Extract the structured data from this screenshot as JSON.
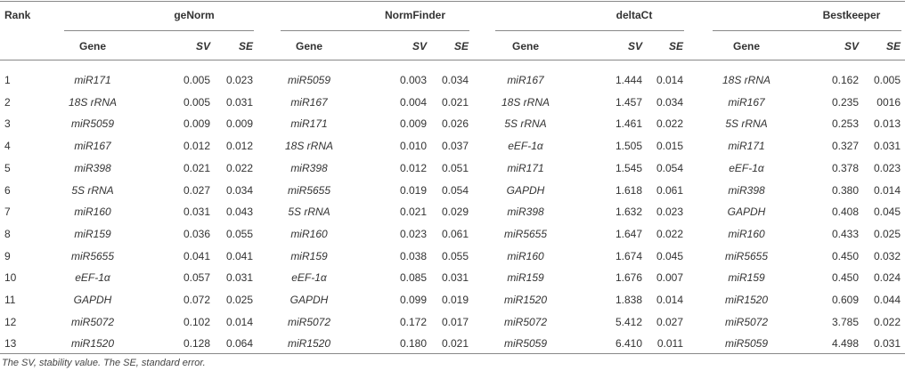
{
  "table": {
    "rank_header": "Rank",
    "groups": [
      {
        "title": "geNorm",
        "columns": [
          "Gene",
          "SV",
          "SE"
        ]
      },
      {
        "title": "NormFinder",
        "columns": [
          "Gene",
          "SV",
          "SE"
        ]
      },
      {
        "title": "deltaCt",
        "columns": [
          "Gene",
          "SV",
          "SE"
        ]
      },
      {
        "title": "Bestkeeper",
        "columns": [
          "Gene",
          "SV",
          "SE"
        ]
      }
    ],
    "rows": [
      [
        "1",
        "miR171",
        "0.005",
        "0.023",
        "miR5059",
        "0.003",
        "0.034",
        "miR167",
        "1.444",
        "0.014",
        "18S rRNA",
        "0.162",
        "0.005"
      ],
      [
        "2",
        "18S rRNA",
        "0.005",
        "0.031",
        "miR167",
        "0.004",
        "0.021",
        "18S rRNA",
        "1.457",
        "0.034",
        "miR167",
        "0.235",
        "0016"
      ],
      [
        "3",
        "miR5059",
        "0.009",
        "0.009",
        "miR171",
        "0.009",
        "0.026",
        "5S rRNA",
        "1.461",
        "0.022",
        "5S rRNA",
        "0.253",
        "0.013"
      ],
      [
        "4",
        "miR167",
        "0.012",
        "0.012",
        "18S rRNA",
        "0.010",
        "0.037",
        "eEF-1α",
        "1.505",
        "0.015",
        "miR171",
        "0.327",
        "0.031"
      ],
      [
        "5",
        "miR398",
        "0.021",
        "0.022",
        "miR398",
        "0.012",
        "0.051",
        "miR171",
        "1.545",
        "0.054",
        "eEF-1α",
        "0.378",
        "0.023"
      ],
      [
        "6",
        "5S rRNA",
        "0.027",
        "0.034",
        "miR5655",
        "0.019",
        "0.054",
        "GAPDH",
        "1.618",
        "0.061",
        "miR398",
        "0.380",
        "0.014"
      ],
      [
        "7",
        "miR160",
        "0.031",
        "0.043",
        "5S rRNA",
        "0.021",
        "0.029",
        "miR398",
        "1.632",
        "0.023",
        "GAPDH",
        "0.408",
        "0.045"
      ],
      [
        "8",
        "miR159",
        "0.036",
        "0.055",
        "miR160",
        "0.023",
        "0.061",
        "miR5655",
        "1.647",
        "0.022",
        "miR160",
        "0.433",
        "0.025"
      ],
      [
        "9",
        "miR5655",
        "0.041",
        "0.041",
        "miR159",
        "0.038",
        "0.055",
        "miR160",
        "1.674",
        "0.045",
        "miR5655",
        "0.450",
        "0.032"
      ],
      [
        "10",
        "eEF-1α",
        "0.057",
        "0.031",
        "eEF-1α",
        "0.085",
        "0.031",
        "miR159",
        "1.676",
        "0.007",
        "miR159",
        "0.450",
        "0.024"
      ],
      [
        "11",
        "GAPDH",
        "0.072",
        "0.025",
        "GAPDH",
        "0.099",
        "0.019",
        "miR1520",
        "1.838",
        "0.014",
        "miR1520",
        "0.609",
        "0.044"
      ],
      [
        "12",
        "miR5072",
        "0.102",
        "0.014",
        "miR5072",
        "0.172",
        "0.017",
        "miR5072",
        "5.412",
        "0.027",
        "miR5072",
        "3.785",
        "0.022"
      ],
      [
        "13",
        "miR1520",
        "0.128",
        "0.064",
        "miR1520",
        "0.180",
        "0.021",
        "miR5059",
        "6.410",
        "0.011",
        "miR5059",
        "4.498",
        "0.031"
      ]
    ],
    "footnote": "The SV, stability value. The SE, standard error."
  }
}
